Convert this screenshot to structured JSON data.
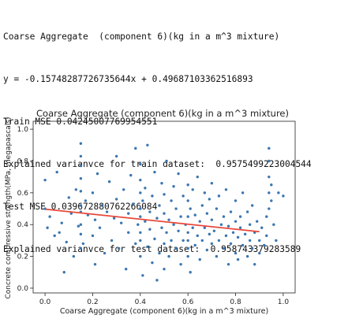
{
  "console_output": [
    "Coarse Aggregate  (component 6)(kg in a m^3 mixture)",
    "y = -0.15748287726735644x + 0.49687103362516893",
    "Train MSE 0.04245007769954551",
    "Explained varianvce for train dataset:  0.9575499223004544",
    "Test MSE 0.039672880762266084",
    "Explained varianvce for test dataset:  0.958743379283589"
  ],
  "chart_data": {
    "type": "scatter",
    "title": "Coarse Aggregate  (component 6)(kg in a m^3 mixture)",
    "xlabel": "Coarse Aggregate  (component 6)(kg in a m^3 mixture)",
    "ylabel": "Concrete compressive strength(MPa, megapascals)",
    "xlim": [
      -0.05,
      1.05
    ],
    "ylim": [
      -0.03,
      1.05
    ],
    "xticks": [
      "0.0",
      "0.2",
      "0.4",
      "0.6",
      "0.8",
      "1.0"
    ],
    "yticks": [
      "0.0",
      "0.2",
      "0.4",
      "0.6",
      "0.8",
      "1.0"
    ],
    "grid": false,
    "legend": false,
    "colors": {
      "points": "#3a76b0",
      "fit_line": "#e8483a"
    },
    "fit_line": {
      "slope": -0.15748287726735644,
      "intercept": 0.49687103362516893,
      "x_start": 0.0,
      "x_end": 0.9
    },
    "series": [
      {
        "points": [
          [
            0.0,
            0.68
          ],
          [
            0.0,
            0.5
          ],
          [
            0.01,
            0.38
          ],
          [
            0.02,
            0.45
          ],
          [
            0.04,
            0.33
          ],
          [
            0.05,
            0.73
          ],
          [
            0.06,
            0.35
          ],
          [
            0.07,
            0.41
          ],
          [
            0.08,
            0.1
          ],
          [
            0.09,
            0.29
          ],
          [
            0.1,
            0.57
          ],
          [
            0.11,
            0.47
          ],
          [
            0.12,
            0.2
          ],
          [
            0.13,
            0.62
          ],
          [
            0.14,
            0.39
          ],
          [
            0.15,
            0.34
          ],
          [
            0.15,
            0.48
          ],
          [
            0.15,
            0.52
          ],
          [
            0.15,
            0.61
          ],
          [
            0.15,
            0.69
          ],
          [
            0.15,
            0.77
          ],
          [
            0.15,
            0.83
          ],
          [
            0.15,
            0.91
          ],
          [
            0.15,
            0.25
          ],
          [
            0.15,
            0.4
          ],
          [
            0.16,
            0.28
          ],
          [
            0.17,
            0.55
          ],
          [
            0.18,
            0.46
          ],
          [
            0.2,
            0.33
          ],
          [
            0.2,
            0.6
          ],
          [
            0.21,
            0.15
          ],
          [
            0.21,
            0.43
          ],
          [
            0.22,
            0.72
          ],
          [
            0.23,
            0.38
          ],
          [
            0.24,
            0.52
          ],
          [
            0.25,
            0.22
          ],
          [
            0.26,
            0.48
          ],
          [
            0.27,
            0.67
          ],
          [
            0.28,
            0.3
          ],
          [
            0.29,
            0.44
          ],
          [
            0.3,
            0.56
          ],
          [
            0.3,
            0.83
          ],
          [
            0.31,
            0.25
          ],
          [
            0.32,
            0.41
          ],
          [
            0.33,
            0.62
          ],
          [
            0.34,
            0.12
          ],
          [
            0.35,
            0.47
          ],
          [
            0.35,
            0.35
          ],
          [
            0.36,
            0.71
          ],
          [
            0.37,
            0.53
          ],
          [
            0.38,
            0.28
          ],
          [
            0.38,
            0.88
          ],
          [
            0.39,
            0.4
          ],
          [
            0.4,
            0.2
          ],
          [
            0.4,
            0.35
          ],
          [
            0.4,
            0.5
          ],
          [
            0.4,
            0.6
          ],
          [
            0.4,
            0.68
          ],
          [
            0.4,
            0.78
          ],
          [
            0.4,
            0.45
          ],
          [
            0.4,
            0.3
          ],
          [
            0.41,
            0.55
          ],
          [
            0.41,
            0.08
          ],
          [
            0.42,
            0.42
          ],
          [
            0.42,
            0.63
          ],
          [
            0.43,
            0.26
          ],
          [
            0.43,
            0.9
          ],
          [
            0.44,
            0.48
          ],
          [
            0.44,
            0.37
          ],
          [
            0.45,
            0.58
          ],
          [
            0.45,
            0.16
          ],
          [
            0.46,
            0.73
          ],
          [
            0.46,
            0.31
          ],
          [
            0.47,
            0.44
          ],
          [
            0.47,
            0.05
          ],
          [
            0.48,
            0.52
          ],
          [
            0.48,
            0.22
          ],
          [
            0.49,
            0.66
          ],
          [
            0.49,
            0.38
          ],
          [
            0.5,
            0.47
          ],
          [
            0.5,
            0.28
          ],
          [
            0.5,
            0.59
          ],
          [
            0.5,
            0.12
          ],
          [
            0.51,
            0.35
          ],
          [
            0.51,
            0.8
          ],
          [
            0.52,
            0.43
          ],
          [
            0.52,
            0.2
          ],
          [
            0.53,
            0.55
          ],
          [
            0.53,
            0.3
          ],
          [
            0.54,
            0.64
          ],
          [
            0.54,
            0.4
          ],
          [
            0.55,
            0.25
          ],
          [
            0.55,
            0.5
          ],
          [
            0.56,
            0.36
          ],
          [
            0.56,
            0.72
          ],
          [
            0.57,
            0.15
          ],
          [
            0.57,
            0.45
          ],
          [
            0.58,
            0.58
          ],
          [
            0.58,
            0.3
          ],
          [
            0.59,
            0.4
          ],
          [
            0.6,
            0.2
          ],
          [
            0.6,
            0.3
          ],
          [
            0.6,
            0.45
          ],
          [
            0.6,
            0.55
          ],
          [
            0.6,
            0.65
          ],
          [
            0.6,
            0.35
          ],
          [
            0.6,
            0.25
          ],
          [
            0.61,
            0.5
          ],
          [
            0.61,
            0.1
          ],
          [
            0.62,
            0.38
          ],
          [
            0.62,
            0.62
          ],
          [
            0.63,
            0.27
          ],
          [
            0.63,
            0.46
          ],
          [
            0.64,
            0.33
          ],
          [
            0.64,
            0.7
          ],
          [
            0.65,
            0.42
          ],
          [
            0.65,
            0.18
          ],
          [
            0.66,
            0.52
          ],
          [
            0.66,
            0.3
          ],
          [
            0.67,
            0.6
          ],
          [
            0.67,
            0.38
          ],
          [
            0.68,
            0.24
          ],
          [
            0.68,
            0.47
          ],
          [
            0.69,
            0.34
          ],
          [
            0.69,
            0.56
          ],
          [
            0.7,
            0.28
          ],
          [
            0.7,
            0.43
          ],
          [
            0.7,
            0.66
          ],
          [
            0.71,
            0.36
          ],
          [
            0.72,
            0.2
          ],
          [
            0.72,
            0.5
          ],
          [
            0.73,
            0.3
          ],
          [
            0.73,
            0.58
          ],
          [
            0.74,
            0.4
          ],
          [
            0.75,
            0.25
          ],
          [
            0.75,
            0.45
          ],
          [
            0.76,
            0.33
          ],
          [
            0.76,
            0.62
          ],
          [
            0.77,
            0.15
          ],
          [
            0.77,
            0.39
          ],
          [
            0.78,
            0.48
          ],
          [
            0.78,
            0.28
          ],
          [
            0.79,
            0.35
          ],
          [
            0.8,
            0.42
          ],
          [
            0.8,
            0.22
          ],
          [
            0.8,
            0.55
          ],
          [
            0.81,
            0.32
          ],
          [
            0.81,
            0.18
          ],
          [
            0.82,
            0.45
          ],
          [
            0.82,
            0.38
          ],
          [
            0.83,
            0.27
          ],
          [
            0.83,
            0.6
          ],
          [
            0.84,
            0.34
          ],
          [
            0.85,
            0.2
          ],
          [
            0.85,
            0.48
          ],
          [
            0.86,
            0.3
          ],
          [
            0.86,
            0.4
          ],
          [
            0.87,
            0.25
          ],
          [
            0.87,
            0.52
          ],
          [
            0.88,
            0.35
          ],
          [
            0.88,
            0.15
          ],
          [
            0.89,
            0.42
          ],
          [
            0.9,
            0.3
          ],
          [
            0.9,
            0.22
          ],
          [
            0.91,
            0.38
          ],
          [
            0.92,
            0.27
          ],
          [
            0.93,
            0.33
          ],
          [
            0.93,
            0.45
          ],
          [
            0.94,
            0.5
          ],
          [
            0.94,
            0.6
          ],
          [
            0.94,
            0.7
          ],
          [
            0.94,
            0.8
          ],
          [
            0.94,
            0.88
          ],
          [
            0.95,
            0.55
          ],
          [
            0.95,
            0.65
          ],
          [
            0.96,
            0.4
          ],
          [
            0.97,
            0.3
          ],
          [
            0.98,
            0.6
          ],
          [
            1.0,
            0.58
          ]
        ]
      }
    ]
  }
}
